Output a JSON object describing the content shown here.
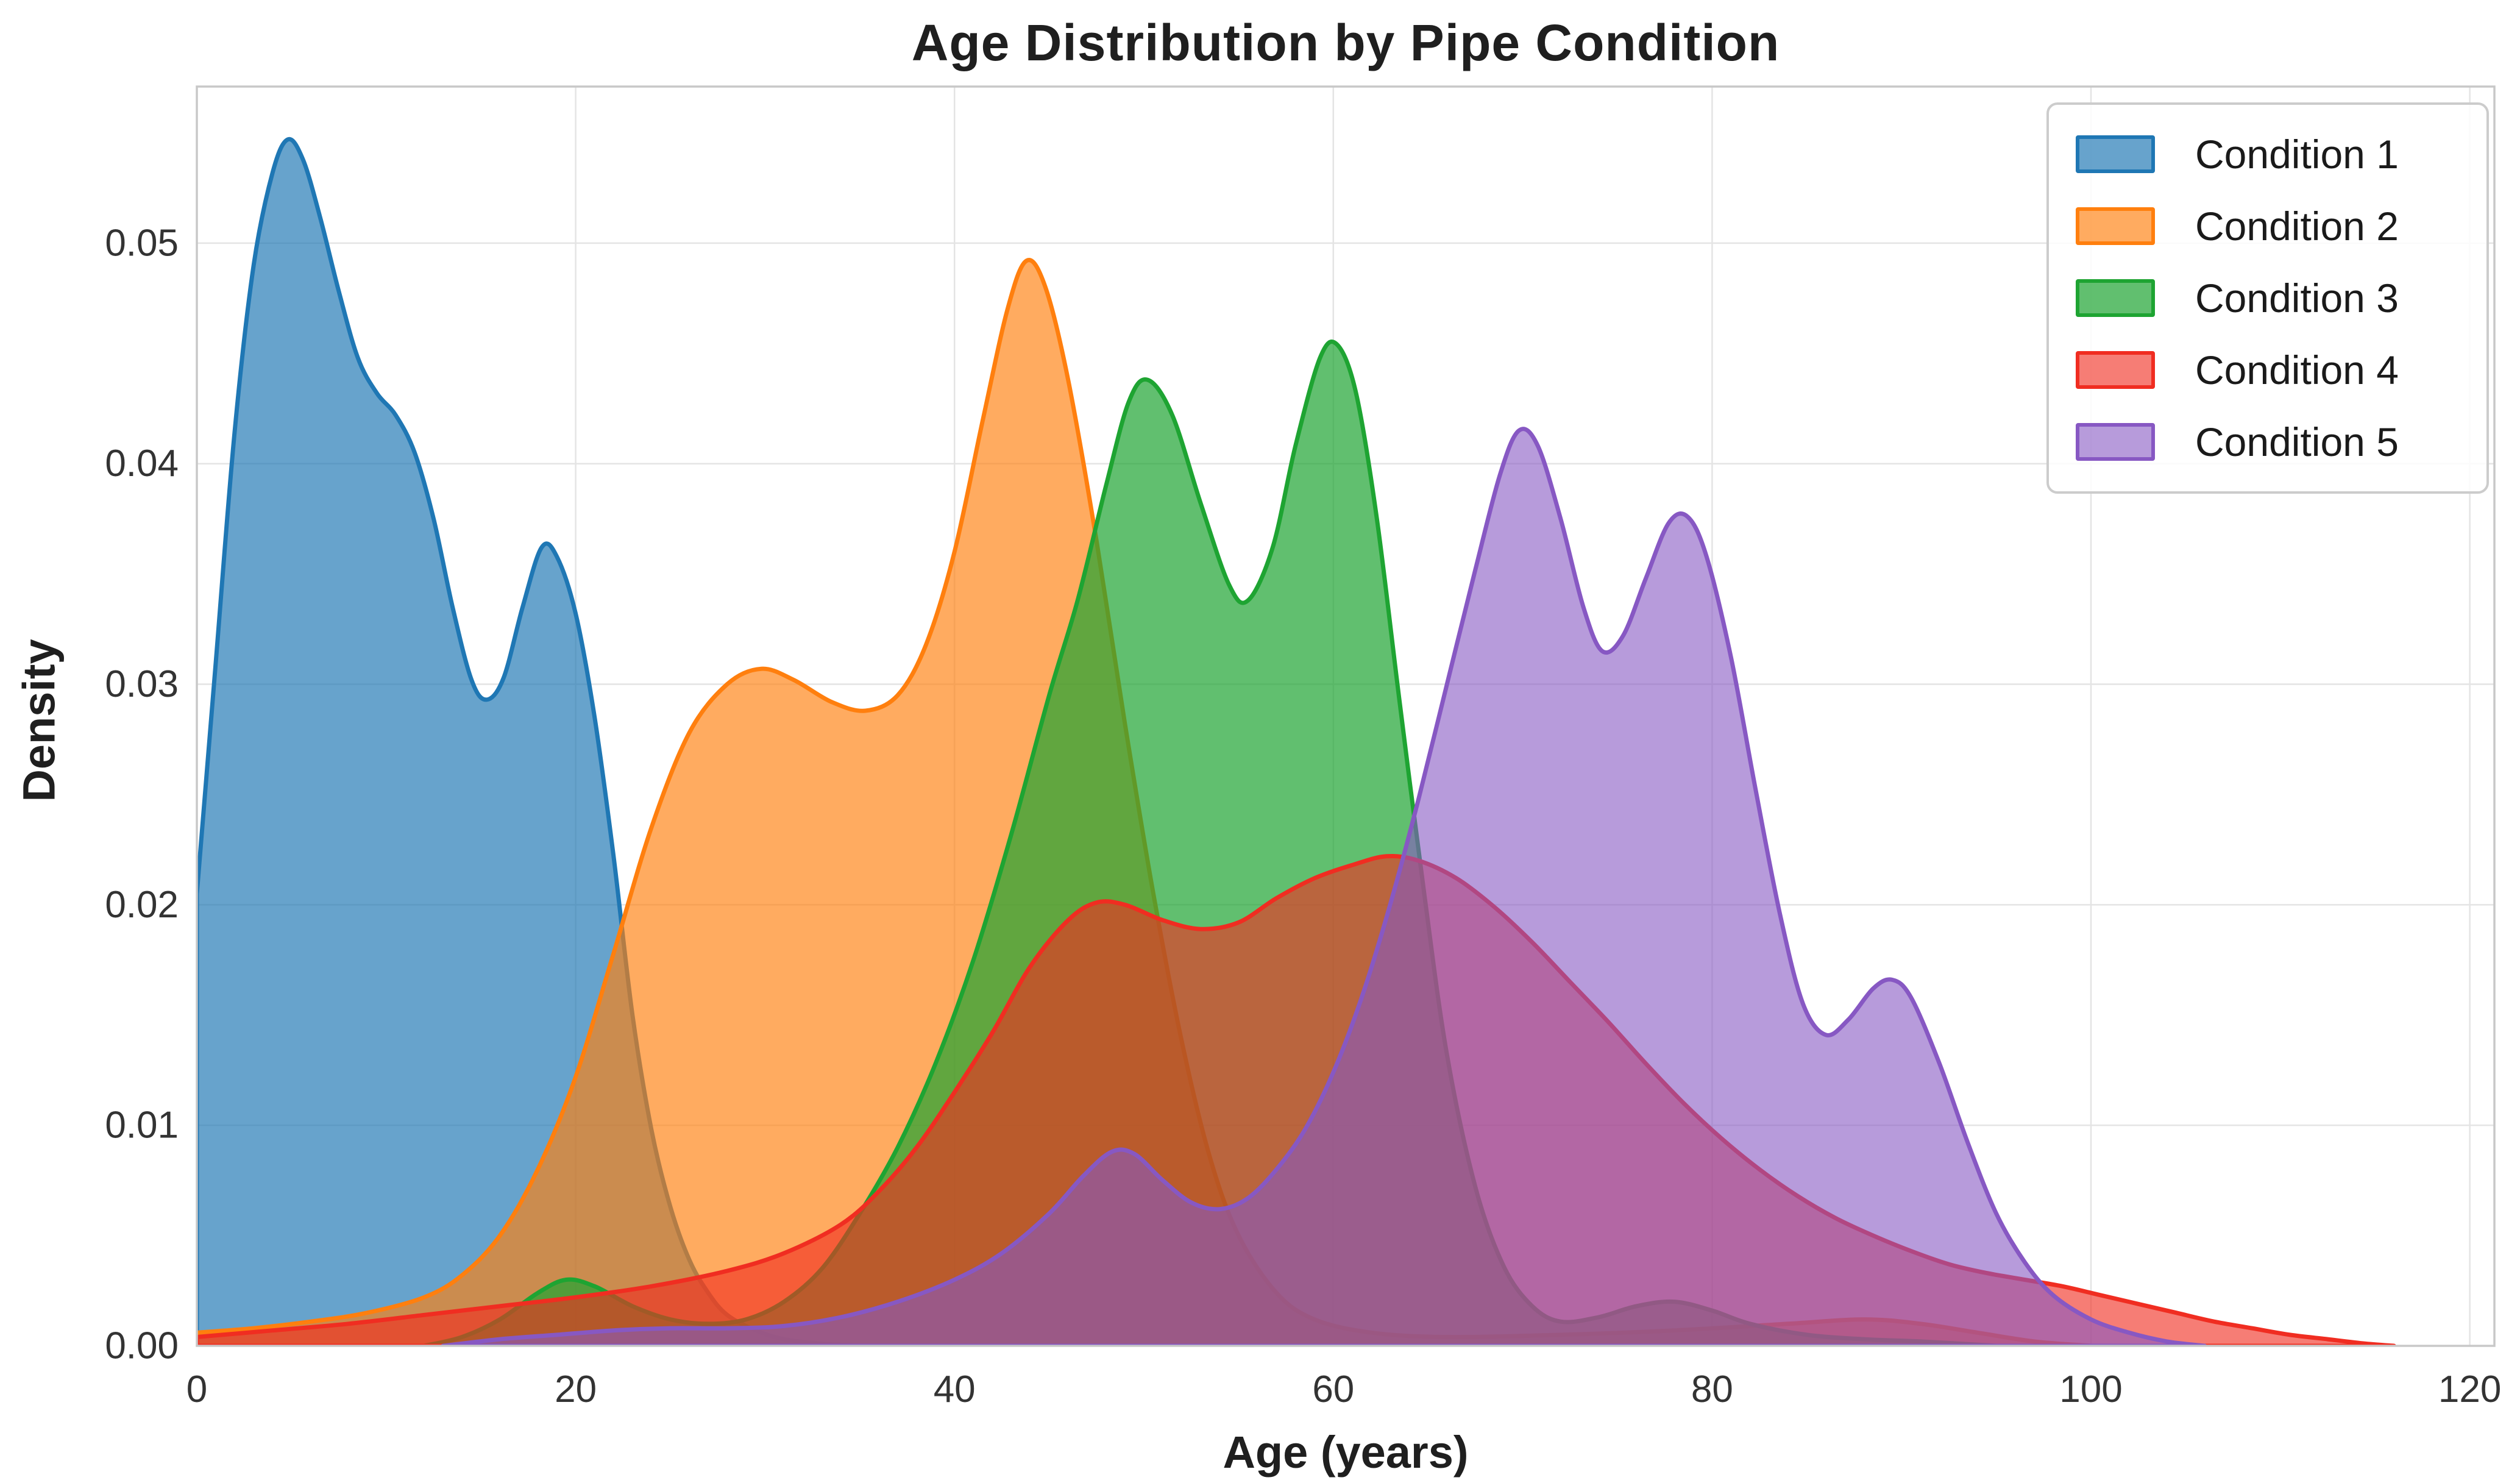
{
  "figure": {
    "background": "#ffffff",
    "grid_color": "#e4e4e4",
    "spine_color": "#c8c8c8",
    "tick_color": "#333333",
    "legend_border_color": "#cccccc"
  },
  "chart_data": {
    "type": "area",
    "subtype": "kde-density",
    "title": "Age Distribution by Pipe Condition",
    "xlabel": "Age (years)",
    "ylabel": "Density",
    "xlim": [
      0,
      121.3
    ],
    "ylim": [
      0,
      0.0571
    ],
    "x_ticks": [
      0,
      20,
      40,
      60,
      80,
      100,
      120
    ],
    "y_ticks": [
      0.0,
      0.01,
      0.02,
      0.03,
      0.04,
      0.05
    ],
    "y_tick_labels": [
      "0.00",
      "0.01",
      "0.02",
      "0.03",
      "0.04",
      "0.05"
    ],
    "grid": true,
    "legend_position": "upper right",
    "series": [
      {
        "name": "Condition 1",
        "edge_color": "#1f77b4",
        "fill_color": "rgba(31,119,180,0.68)",
        "points": [
          [
            0,
            0.0205
          ],
          [
            1,
            0.031
          ],
          [
            2,
            0.0415
          ],
          [
            3,
            0.049
          ],
          [
            4,
            0.0532
          ],
          [
            4.8,
            0.0547
          ],
          [
            5.6,
            0.0538
          ],
          [
            6.5,
            0.0512
          ],
          [
            7.5,
            0.0478
          ],
          [
            8.5,
            0.0448
          ],
          [
            9.5,
            0.0432
          ],
          [
            10.5,
            0.0422
          ],
          [
            11.5,
            0.0405
          ],
          [
            12.5,
            0.0375
          ],
          [
            13.5,
            0.0335
          ],
          [
            14.5,
            0.0302
          ],
          [
            15.3,
            0.0293
          ],
          [
            16.2,
            0.0303
          ],
          [
            17.2,
            0.0335
          ],
          [
            18.2,
            0.0362
          ],
          [
            19,
            0.0358
          ],
          [
            20,
            0.0332
          ],
          [
            21,
            0.0285
          ],
          [
            22,
            0.0222
          ],
          [
            23,
            0.015
          ],
          [
            24,
            0.0098
          ],
          [
            25,
            0.0063
          ],
          [
            26,
            0.0039
          ],
          [
            27,
            0.0024
          ],
          [
            28,
            0.0014
          ],
          [
            29.5,
            0.0007
          ],
          [
            31,
            0.0003
          ],
          [
            33,
            0.0001
          ],
          [
            35,
            0
          ]
        ]
      },
      {
        "name": "Condition 2",
        "edge_color": "#ff7f0e",
        "fill_color": "rgba(255,127,14,0.66)",
        "points": [
          [
            0,
            0.0006
          ],
          [
            3,
            0.0008
          ],
          [
            6,
            0.0011
          ],
          [
            9,
            0.0015
          ],
          [
            12,
            0.0022
          ],
          [
            14,
            0.0032
          ],
          [
            16,
            0.005
          ],
          [
            18,
            0.008
          ],
          [
            20,
            0.0122
          ],
          [
            22,
            0.0178
          ],
          [
            24,
            0.0235
          ],
          [
            26,
            0.0278
          ],
          [
            28,
            0.03
          ],
          [
            29.8,
            0.0307
          ],
          [
            31.5,
            0.0302
          ],
          [
            33.5,
            0.0292
          ],
          [
            35.3,
            0.0288
          ],
          [
            37,
            0.0295
          ],
          [
            38.5,
            0.0318
          ],
          [
            40,
            0.036
          ],
          [
            41.5,
            0.042
          ],
          [
            42.8,
            0.047
          ],
          [
            43.8,
            0.0492
          ],
          [
            44.8,
            0.048
          ],
          [
            46,
            0.0438
          ],
          [
            47.5,
            0.0365
          ],
          [
            49,
            0.0282
          ],
          [
            50.5,
            0.0205
          ],
          [
            52,
            0.0138
          ],
          [
            53.5,
            0.0085
          ],
          [
            55,
            0.005
          ],
          [
            57,
            0.0024
          ],
          [
            59,
            0.0012
          ],
          [
            62,
            0.0006
          ],
          [
            66,
            0.0004
          ],
          [
            72,
            0.0005
          ],
          [
            78,
            0.0007
          ],
          [
            84,
            0.001
          ],
          [
            88,
            0.0012
          ],
          [
            91,
            0.001
          ],
          [
            94,
            0.0006
          ],
          [
            97,
            0.0002
          ],
          [
            100,
            0
          ]
        ]
      },
      {
        "name": "Condition 3",
        "edge_color": "#1ea432",
        "fill_color": "rgba(30,164,50,0.70)",
        "points": [
          [
            12,
            0
          ],
          [
            14,
            0.0004
          ],
          [
            16,
            0.0012
          ],
          [
            18,
            0.0024
          ],
          [
            19.5,
            0.003
          ],
          [
            21,
            0.0027
          ],
          [
            23,
            0.0018
          ],
          [
            25,
            0.0012
          ],
          [
            27,
            0.001
          ],
          [
            29,
            0.0012
          ],
          [
            31,
            0.002
          ],
          [
            33,
            0.0035
          ],
          [
            35,
            0.006
          ],
          [
            37,
            0.009
          ],
          [
            39,
            0.0128
          ],
          [
            41,
            0.0175
          ],
          [
            43,
            0.0232
          ],
          [
            45,
            0.0295
          ],
          [
            46.5,
            0.0338
          ],
          [
            48,
            0.039
          ],
          [
            49.2,
            0.0428
          ],
          [
            50.2,
            0.0438
          ],
          [
            51.5,
            0.0422
          ],
          [
            53,
            0.0382
          ],
          [
            54.5,
            0.0345
          ],
          [
            55.5,
            0.0338
          ],
          [
            56.8,
            0.0362
          ],
          [
            58,
            0.0408
          ],
          [
            59.3,
            0.0448
          ],
          [
            60.2,
            0.0454
          ],
          [
            61.2,
            0.0432
          ],
          [
            62.3,
            0.0375
          ],
          [
            63.5,
            0.0292
          ],
          [
            64.8,
            0.0205
          ],
          [
            66,
            0.0132
          ],
          [
            67.5,
            0.0072
          ],
          [
            69,
            0.0036
          ],
          [
            70.5,
            0.0018
          ],
          [
            72,
            0.0011
          ],
          [
            74,
            0.0013
          ],
          [
            76,
            0.0018
          ],
          [
            78,
            0.002
          ],
          [
            80,
            0.0016
          ],
          [
            82,
            0.001
          ],
          [
            85,
            0.0005
          ],
          [
            88,
            0.0003
          ],
          [
            91,
            0.0002
          ],
          [
            95,
            0
          ]
        ]
      },
      {
        "name": "Condition 4",
        "edge_color": "#f02d21",
        "fill_color": "rgba(240,45,33,0.62)",
        "points": [
          [
            0,
            0.0004
          ],
          [
            4,
            0.0007
          ],
          [
            8,
            0.001
          ],
          [
            12,
            0.0014
          ],
          [
            16,
            0.0018
          ],
          [
            20,
            0.0022
          ],
          [
            24,
            0.0027
          ],
          [
            28,
            0.0034
          ],
          [
            31,
            0.0042
          ],
          [
            34,
            0.0055
          ],
          [
            36,
            0.007
          ],
          [
            38,
            0.009
          ],
          [
            40,
            0.0115
          ],
          [
            42,
            0.0142
          ],
          [
            44,
            0.0172
          ],
          [
            46,
            0.0193
          ],
          [
            47.5,
            0.0201
          ],
          [
            49,
            0.02
          ],
          [
            51,
            0.0193
          ],
          [
            53,
            0.0189
          ],
          [
            55,
            0.0192
          ],
          [
            57,
            0.0203
          ],
          [
            59,
            0.0212
          ],
          [
            61,
            0.0218
          ],
          [
            62.8,
            0.0222
          ],
          [
            64.5,
            0.022
          ],
          [
            66.5,
            0.0212
          ],
          [
            68.5,
            0.0199
          ],
          [
            70.5,
            0.0183
          ],
          [
            72.5,
            0.0165
          ],
          [
            74.5,
            0.0147
          ],
          [
            76.5,
            0.0128
          ],
          [
            78.5,
            0.011
          ],
          [
            80.5,
            0.0094
          ],
          [
            82.5,
            0.008
          ],
          [
            84.5,
            0.0068
          ],
          [
            86.5,
            0.0058
          ],
          [
            88.5,
            0.005
          ],
          [
            90.5,
            0.0043
          ],
          [
            92.5,
            0.0037
          ],
          [
            94.5,
            0.0033
          ],
          [
            96.5,
            0.003
          ],
          [
            98.5,
            0.0027
          ],
          [
            100.5,
            0.0023
          ],
          [
            102.5,
            0.0019
          ],
          [
            104.5,
            0.0015
          ],
          [
            106.5,
            0.0011
          ],
          [
            108.5,
            0.0008
          ],
          [
            110.5,
            0.0005
          ],
          [
            112.5,
            0.0003
          ],
          [
            114.5,
            0.0001
          ],
          [
            116,
            0
          ]
        ]
      },
      {
        "name": "Condition 5",
        "edge_color": "#8758c3",
        "fill_color": "rgba(135,88,195,0.60)",
        "points": [
          [
            13,
            0
          ],
          [
            16,
            0.0003
          ],
          [
            19,
            0.0005
          ],
          [
            22,
            0.0007
          ],
          [
            25,
            0.0008
          ],
          [
            28,
            0.0008
          ],
          [
            31,
            0.0009
          ],
          [
            34,
            0.0013
          ],
          [
            37,
            0.002
          ],
          [
            40,
            0.003
          ],
          [
            42.5,
            0.0042
          ],
          [
            45,
            0.006
          ],
          [
            46.8,
            0.0077
          ],
          [
            48.3,
            0.0088
          ],
          [
            49.5,
            0.0087
          ],
          [
            51,
            0.0075
          ],
          [
            52.5,
            0.0065
          ],
          [
            54,
            0.0062
          ],
          [
            55.5,
            0.0067
          ],
          [
            57,
            0.008
          ],
          [
            58.5,
            0.0098
          ],
          [
            60,
            0.0124
          ],
          [
            61.5,
            0.0158
          ],
          [
            63,
            0.02
          ],
          [
            64.5,
            0.0248
          ],
          [
            66,
            0.03
          ],
          [
            67.5,
            0.0352
          ],
          [
            68.8,
            0.0395
          ],
          [
            69.8,
            0.0415
          ],
          [
            70.8,
            0.0408
          ],
          [
            72,
            0.0375
          ],
          [
            73.2,
            0.0335
          ],
          [
            74.2,
            0.0315
          ],
          [
            75.3,
            0.0322
          ],
          [
            76.5,
            0.0348
          ],
          [
            77.7,
            0.0373
          ],
          [
            78.7,
            0.0376
          ],
          [
            79.7,
            0.0358
          ],
          [
            81,
            0.0312
          ],
          [
            82.3,
            0.0252
          ],
          [
            83.6,
            0.0195
          ],
          [
            84.8,
            0.0155
          ],
          [
            86,
            0.0141
          ],
          [
            87.2,
            0.0148
          ],
          [
            88.5,
            0.0162
          ],
          [
            89.5,
            0.0166
          ],
          [
            90.5,
            0.0158
          ],
          [
            92,
            0.0128
          ],
          [
            93.5,
            0.0092
          ],
          [
            95,
            0.006
          ],
          [
            96.5,
            0.0038
          ],
          [
            98,
            0.0023
          ],
          [
            100,
            0.0012
          ],
          [
            102,
            0.0006
          ],
          [
            104,
            0.0002
          ],
          [
            106,
            0
          ]
        ]
      }
    ]
  }
}
